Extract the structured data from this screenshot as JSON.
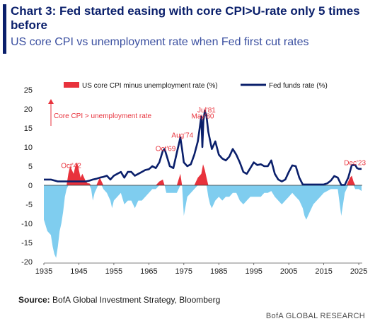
{
  "title": "Chart 3: Fed started easing with core CPI>U-rate only 5 times before",
  "subtitle": "US core CPI vs unemployment rate when Fed first cut rates",
  "source_label": "Source:",
  "source_text": "BofA Global Investment Strategy, Bloomberg",
  "brand": "BofA GLOBAL RESEARCH",
  "colors": {
    "title": "#0a1f6b",
    "fed": "#0a1f6b",
    "pos": "#e8323c",
    "neg": "#7fcdef"
  },
  "chart_data": {
    "type": "line",
    "ylim": [
      -20,
      25
    ],
    "xlim": [
      1935,
      2026
    ],
    "yticks": [
      25,
      20,
      15,
      10,
      5,
      0,
      -5,
      -10,
      -15,
      -20
    ],
    "xticks": [
      1935,
      1945,
      1955,
      1965,
      1975,
      1985,
      1995,
      2005,
      2015,
      2025
    ],
    "legend": {
      "bar": "US core CPI minus unemployment rate (%)",
      "line": "Fed funds rate (%)"
    },
    "annotation": "Core CPI > unemployment rate",
    "labels": [
      {
        "text": "Oct'42",
        "x": 1942.8,
        "y": 4.5
      },
      {
        "text": "Oct'69",
        "x": 1969.8,
        "y": 9
      },
      {
        "text": "Aug'74",
        "x": 1974.6,
        "y": 12.5
      },
      {
        "text": "May'80",
        "x": 1980.4,
        "y": 17.5
      },
      {
        "text": "Jul'81",
        "x": 1981.5,
        "y": 19.1
      },
      {
        "text": "Dec'23",
        "x": 2023.9,
        "y": 5.3
      }
    ],
    "series": [
      {
        "name": "US core CPI minus unemployment rate (%)",
        "kind": "area",
        "x": [
          1935,
          1936,
          1937,
          1937.5,
          1938,
          1938.5,
          1939,
          1939.5,
          1940,
          1940.5,
          1941,
          1941.5,
          1942,
          1942.5,
          1943,
          1943.5,
          1944,
          1944.5,
          1945,
          1945.5,
          1946,
          1946.5,
          1947,
          1947.5,
          1948,
          1948.5,
          1949,
          1949.5,
          1950,
          1950.5,
          1951,
          1951.5,
          1952,
          1953,
          1954,
          1954.5,
          1955,
          1956,
          1957,
          1958,
          1959,
          1960,
          1961,
          1962,
          1963,
          1964,
          1965,
          1966,
          1967,
          1968,
          1969,
          1969.5,
          1970,
          1971,
          1972,
          1973,
          1974,
          1974.5,
          1975,
          1976,
          1977,
          1978,
          1979,
          1980,
          1980.5,
          1981,
          1981.5,
          1982,
          1982.5,
          1983,
          1984,
          1985,
          1986,
          1987,
          1988,
          1989,
          1990,
          1991,
          1992,
          1993,
          1994,
          1995,
          1996,
          1997,
          1998,
          1999,
          2000,
          2001,
          2002,
          2003,
          2004,
          2005,
          2006,
          2007,
          2008,
          2009,
          2009.5,
          2010,
          2011,
          2012,
          2013,
          2014,
          2015,
          2016,
          2017,
          2018,
          2019,
          2020,
          2020.5,
          2021,
          2021.5,
          2022,
          2022.5,
          2023,
          2023.5,
          2024,
          2025,
          2025.8
        ],
        "values": [
          -9,
          -12,
          -13,
          -16,
          -18,
          -19,
          -16,
          -12,
          -10,
          -7,
          -3,
          -1,
          3,
          5,
          4,
          3,
          5,
          6,
          4,
          2,
          3,
          2,
          1,
          0.5,
          0.5,
          -1,
          -4,
          -2,
          -1,
          1,
          2,
          1,
          -1,
          -2,
          -4,
          -6,
          -4,
          -3,
          -2,
          -5,
          -4,
          -4,
          -6,
          -4,
          -4,
          -3,
          -2,
          -1,
          -1,
          1,
          1.5,
          0,
          -2,
          -2,
          -2,
          -2,
          3,
          0,
          -8,
          -3,
          -2,
          -1,
          2,
          3,
          5.5,
          4,
          2,
          -3,
          -5,
          -6,
          -4,
          -3,
          -4,
          -3,
          -3,
          -2,
          -2,
          -4,
          -5,
          -4,
          -3,
          -3,
          -3,
          -3,
          -2,
          -2,
          -1.5,
          -3,
          -4,
          -5,
          -4,
          -3,
          -2,
          -3,
          -4,
          -6,
          -8,
          -9,
          -7,
          -5,
          -4,
          -3,
          -2,
          -1.5,
          -1,
          -1,
          -1,
          -8,
          -5,
          -2,
          -1,
          1,
          2,
          2.5,
          1,
          -1,
          -1,
          -1.5
        ]
      },
      {
        "name": "Fed funds rate (%)",
        "kind": "line",
        "x": [
          1935,
          1937,
          1939,
          1941,
          1943,
          1945,
          1946,
          1947,
          1948,
          1949,
          1950,
          1951,
          1952,
          1953,
          1954,
          1955,
          1956,
          1957,
          1958,
          1959,
          1960,
          1961,
          1962,
          1963,
          1964,
          1965,
          1966,
          1967,
          1968,
          1969,
          1969.5,
          1970,
          1971,
          1972,
          1973,
          1973.5,
          1974,
          1974.5,
          1975,
          1976,
          1977,
          1978,
          1979,
          1980,
          1980.3,
          1980.6,
          1981,
          1981.5,
          1982,
          1983,
          1984,
          1985,
          1986,
          1987,
          1988,
          1989,
          1990,
          1991,
          1992,
          1993,
          1994,
          1995,
          1996,
          1997,
          1998,
          1999,
          2000,
          2001,
          2002,
          2003,
          2004,
          2005,
          2006,
          2007,
          2008,
          2009,
          2010,
          2015,
          2016,
          2017,
          2018,
          2019,
          2020,
          2021,
          2022,
          2023,
          2023.5,
          2024,
          2024.5,
          2025,
          2025.8
        ],
        "values": [
          1.5,
          1.5,
          1.0,
          1.0,
          1.0,
          1.0,
          1.0,
          1.0,
          1.2,
          1.5,
          1.7,
          2.0,
          2.2,
          2.5,
          1.5,
          2.5,
          3.0,
          3.5,
          2.0,
          3.5,
          3.5,
          2.5,
          3.0,
          3.5,
          4.0,
          4.2,
          5.0,
          4.5,
          6.0,
          9.0,
          9.5,
          8.0,
          5.0,
          4.5,
          8.5,
          10.5,
          12.5,
          9.5,
          6.0,
          5.0,
          5.5,
          8.0,
          11.5,
          18.0,
          10.0,
          17.0,
          19.5,
          18.0,
          14.0,
          9.5,
          11.5,
          8.0,
          7.0,
          6.5,
          7.5,
          9.5,
          8.0,
          6.0,
          3.5,
          3.0,
          4.5,
          6.0,
          5.3,
          5.5,
          5.0,
          5.0,
          6.5,
          3.0,
          1.5,
          1.0,
          1.5,
          3.5,
          5.2,
          5.0,
          2.0,
          0.2,
          0.2,
          0.2,
          0.5,
          1.2,
          2.4,
          2.0,
          0.1,
          0.1,
          2.0,
          5.3,
          5.3,
          5.3,
          4.5,
          4.3,
          4.3
        ]
      }
    ]
  }
}
